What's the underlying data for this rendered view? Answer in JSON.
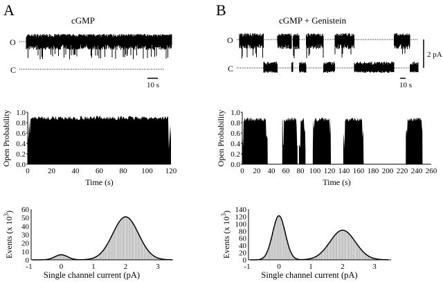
{
  "panels": [
    {
      "letter": "A",
      "condition": "cGMP"
    },
    {
      "letter": "B",
      "condition": "cGMP + Genistein"
    }
  ],
  "trace_labels": {
    "open": "O",
    "closed": "C",
    "time_scale": "10 s",
    "current_scale": "2 pA"
  },
  "chart_data": [
    {
      "type": "area",
      "panel": "A",
      "title": "",
      "xlabel": "Time (s)",
      "ylabel": "Open Probability",
      "xlim": [
        0,
        120
      ],
      "ylim": [
        0,
        1.0
      ],
      "xticks": [
        "0",
        "20",
        "40",
        "60",
        "80",
        "100",
        "120"
      ],
      "yticks": [
        "0.0",
        "0.2",
        "0.4",
        "0.6",
        "0.8",
        "1.0"
      ],
      "open_intervals_s": [
        [
          0,
          120
        ]
      ],
      "mean_open_probability": 0.93
    },
    {
      "type": "area",
      "panel": "B",
      "title": "",
      "xlabel": "Time (s)",
      "ylabel": "Open Probability",
      "xlim": [
        0,
        260
      ],
      "ylim": [
        0,
        1.0
      ],
      "xticks": [
        "0",
        "20",
        "40",
        "60",
        "80",
        "100",
        "120",
        "140",
        "160",
        "180",
        "200",
        "220",
        "240",
        "260"
      ],
      "yticks": [
        "0.0",
        "0.2",
        "0.4",
        "0.6",
        "0.8",
        "1.0"
      ],
      "open_intervals_s": [
        [
          0,
          35
        ],
        [
          55,
          76
        ],
        [
          78,
          87
        ],
        [
          97,
          122
        ],
        [
          139,
          167
        ],
        [
          225,
          248
        ]
      ],
      "mean_open_probability": 0.9
    },
    {
      "type": "bar",
      "panel": "A",
      "title": "",
      "xlabel": "Single channel current (pA)",
      "ylabel": "Events (x 10",
      "ylabel_superscript": "3",
      "ylabel_close": ")",
      "xlim": [
        -1,
        3.5
      ],
      "ylim": [
        0,
        60
      ],
      "xticks": [
        "-1",
        "0",
        "1",
        "2",
        "3"
      ],
      "yticks": [
        "0",
        "10",
        "20",
        "30",
        "40",
        "50",
        "60"
      ],
      "gaussian_fit": [
        {
          "mean_pA": 0,
          "peak": 6,
          "sd_pA": 0.2
        },
        {
          "mean_pA": 2,
          "peak": 51,
          "sd_pA": 0.4
        }
      ]
    },
    {
      "type": "bar",
      "panel": "B",
      "title": "",
      "xlabel": "Single channel current (pA)",
      "ylabel": "Events (x 10",
      "ylabel_superscript": "3",
      "ylabel_close": ")",
      "xlim": [
        -1,
        3.5
      ],
      "ylim": [
        0,
        140
      ],
      "xticks": [
        "-1",
        "0",
        "1",
        "2",
        "3"
      ],
      "yticks": [
        "0",
        "20",
        "40",
        "60",
        "80",
        "100",
        "120",
        "140"
      ],
      "gaussian_fit": [
        {
          "mean_pA": 0,
          "peak": 122,
          "sd_pA": 0.2
        },
        {
          "mean_pA": 2,
          "peak": 82,
          "sd_pA": 0.4
        }
      ]
    }
  ]
}
